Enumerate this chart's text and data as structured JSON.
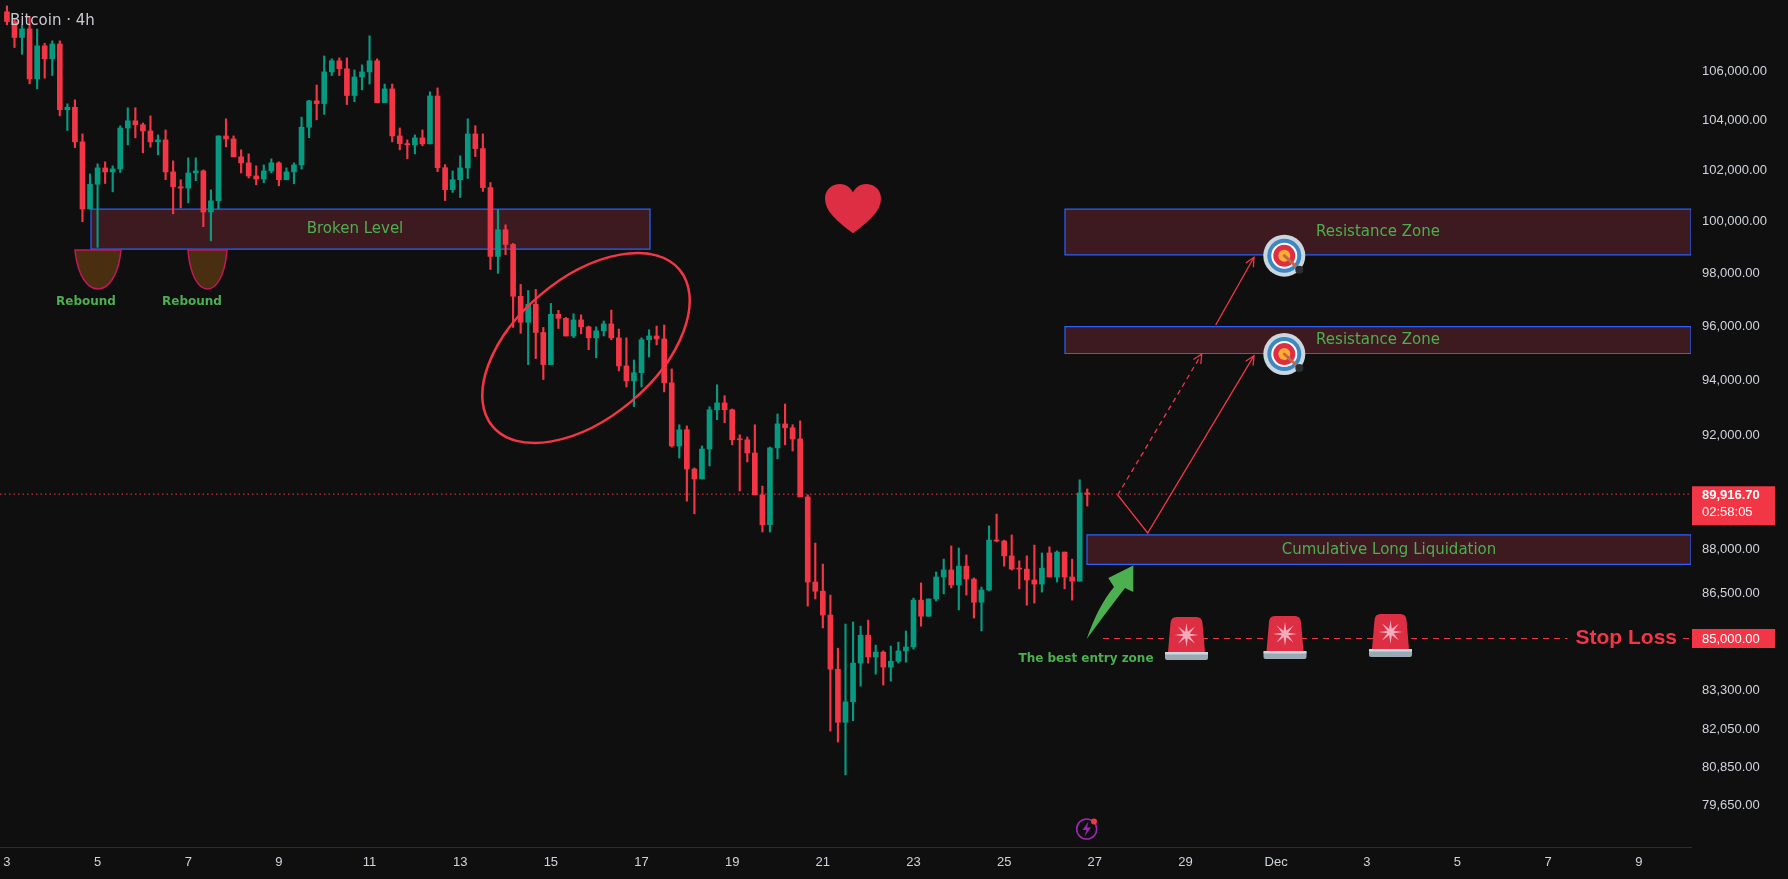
{
  "chart_data": {
    "type": "candlestick",
    "title": "Bitcoin · 4h",
    "x": [
      "--11-03T00:00",
      "--11-03T04:00",
      "--11-03T08:00",
      "--11-03T12:00",
      "--11-03T16:00",
      "--11-03T20:00",
      "--11-04T00:00",
      "--11-04T04:00",
      "--11-04T08:00",
      "--11-04T12:00",
      "--11-04T16:00",
      "--11-04T20:00",
      "--11-05T00:00",
      "--11-05T04:00",
      "--11-05T08:00",
      "--11-05T12:00",
      "--11-05T16:00",
      "--11-05T20:00",
      "--11-06T00:00",
      "--11-06T04:00",
      "--11-06T08:00",
      "--11-06T12:00",
      "--11-06T16:00",
      "--11-06T20:00",
      "--11-07T00:00",
      "--11-07T04:00",
      "--11-07T08:00",
      "--11-07T12:00",
      "--11-07T16:00",
      "--11-07T20:00",
      "--11-08T00:00",
      "--11-08T04:00",
      "--11-08T08:00",
      "--11-08T12:00",
      "--11-08T16:00",
      "--11-08T20:00",
      "--11-09T00:00",
      "--11-09T04:00",
      "--11-09T08:00",
      "--11-09T12:00",
      "--11-09T16:00",
      "--11-09T20:00",
      "--11-10T00:00",
      "--11-10T04:00",
      "--11-10T08:00",
      "--11-10T12:00",
      "--11-10T16:00",
      "--11-10T20:00",
      "--11-11T00:00",
      "--11-11T04:00",
      "--11-11T08:00",
      "--11-11T12:00",
      "--11-11T16:00",
      "--11-11T20:00",
      "--11-12T00:00",
      "--11-12T04:00",
      "--11-12T08:00",
      "--11-12T12:00",
      "--11-12T16:00",
      "--11-12T20:00",
      "--11-13T00:00",
      "--11-13T04:00",
      "--11-13T08:00",
      "--11-13T12:00",
      "--11-13T16:00",
      "--11-13T20:00",
      "--11-14T00:00",
      "--11-14T04:00",
      "--11-14T08:00",
      "--11-14T12:00",
      "--11-14T16:00",
      "--11-14T20:00",
      "--11-15T00:00",
      "--11-15T04:00",
      "--11-15T08:00",
      "--11-15T12:00",
      "--11-15T16:00",
      "--11-15T20:00",
      "--11-16T00:00",
      "--11-16T04:00",
      "--11-16T08:00",
      "--11-16T12:00",
      "--11-16T16:00",
      "--11-16T20:00",
      "--11-17T00:00",
      "--11-17T04:00",
      "--11-17T08:00",
      "--11-17T12:00",
      "--11-17T16:00",
      "--11-17T20:00",
      "--11-18T00:00",
      "--11-18T04:00",
      "--11-18T08:00",
      "--11-18T12:00",
      "--11-18T16:00",
      "--11-18T20:00",
      "--11-19T00:00",
      "--11-19T04:00",
      "--11-19T08:00",
      "--11-19T12:00",
      "--11-19T16:00",
      "--11-19T20:00",
      "--11-20T00:00",
      "--11-20T04:00",
      "--11-20T08:00",
      "--11-20T12:00",
      "--11-20T16:00",
      "--11-20T20:00",
      "--11-21T00:00",
      "--11-21T04:00",
      "--11-21T08:00",
      "--11-21T12:00",
      "--11-21T16:00",
      "--11-21T20:00",
      "--11-22T00:00",
      "--11-22T04:00",
      "--11-22T08:00",
      "--11-22T12:00",
      "--11-22T16:00",
      "--11-22T20:00",
      "--11-23T00:00",
      "--11-23T04:00",
      "--11-23T08:00",
      "--11-23T12:00",
      "--11-23T16:00",
      "--11-23T20:00",
      "--11-24T00:00",
      "--11-24T04:00",
      "--11-24T08:00",
      "--11-24T12:00",
      "--11-24T16:00",
      "--11-24T20:00",
      "--11-25T00:00",
      "--11-25T04:00",
      "--11-25T08:00",
      "--11-25T12:00",
      "--11-25T16:00",
      "--11-25T20:00",
      "--11-26T00:00",
      "--11-26T04:00",
      "--11-26T08:00",
      "--11-26T12:00",
      "--11-26T16:00",
      "--11-26T20:00"
    ],
    "ohlc": [
      [
        108500,
        108750,
        107950,
        108090
      ],
      [
        108090,
        108200,
        107000,
        107420
      ],
      [
        107420,
        107950,
        106720,
        107780
      ],
      [
        107780,
        108300,
        105500,
        105700
      ],
      [
        105700,
        107770,
        105290,
        107070
      ],
      [
        107070,
        107180,
        105730,
        106530
      ],
      [
        106530,
        107280,
        105840,
        107150
      ],
      [
        107150,
        107280,
        104190,
        104440
      ],
      [
        104440,
        104680,
        103600,
        104540
      ],
      [
        104540,
        104840,
        102910,
        103140
      ],
      [
        103140,
        103460,
        99980,
        100480
      ],
      [
        100480,
        101860,
        100480,
        101450
      ],
      [
        101450,
        102260,
        98990,
        102100
      ],
      [
        102100,
        102340,
        101480,
        101940
      ],
      [
        101940,
        102180,
        101150,
        102060
      ],
      [
        102060,
        103790,
        101920,
        103700
      ],
      [
        103700,
        104520,
        103020,
        103990
      ],
      [
        103990,
        104520,
        103300,
        103830
      ],
      [
        103830,
        103900,
        102700,
        103580
      ],
      [
        103580,
        104190,
        102930,
        103140
      ],
      [
        103140,
        103420,
        102620,
        103220
      ],
      [
        103220,
        103620,
        101630,
        101940
      ],
      [
        101940,
        102380,
        100290,
        101350
      ],
      [
        101350,
        101630,
        100520,
        101300
      ],
      [
        101300,
        102500,
        100720,
        101900
      ],
      [
        101900,
        102500,
        101590,
        101980
      ],
      [
        101980,
        102020,
        99790,
        100360
      ],
      [
        100360,
        101230,
        99240,
        100800
      ],
      [
        100800,
        103380,
        100480,
        103380
      ],
      [
        103380,
        104070,
        102940,
        103260
      ],
      [
        103260,
        103380,
        102540,
        102540
      ],
      [
        102540,
        102820,
        101900,
        102300
      ],
      [
        102300,
        102660,
        101700,
        101780
      ],
      [
        101780,
        102180,
        101430,
        101660
      ],
      [
        101660,
        102220,
        101510,
        101980
      ],
      [
        101980,
        102460,
        101900,
        102300
      ],
      [
        102300,
        102340,
        101390,
        101630
      ],
      [
        101630,
        102100,
        101630,
        101940
      ],
      [
        101940,
        102300,
        101470,
        102220
      ],
      [
        102220,
        104140,
        102050,
        103730
      ],
      [
        103730,
        104820,
        103310,
        104800
      ],
      [
        104800,
        105450,
        104030,
        104690
      ],
      [
        104690,
        106650,
        104250,
        105990
      ],
      [
        105990,
        106530,
        105840,
        106450
      ],
      [
        106450,
        106570,
        105840,
        106120
      ],
      [
        106120,
        106570,
        104650,
        105020
      ],
      [
        105020,
        106070,
        104770,
        105780
      ],
      [
        105780,
        106280,
        105250,
        105990
      ],
      [
        105990,
        107490,
        105490,
        106450
      ],
      [
        106450,
        106530,
        104730,
        104730
      ],
      [
        104730,
        105490,
        104730,
        105290
      ],
      [
        105290,
        105490,
        103140,
        103380
      ],
      [
        103380,
        103700,
        102820,
        103070
      ],
      [
        103070,
        103220,
        102460,
        103020
      ],
      [
        103020,
        103420,
        102660,
        103300
      ],
      [
        103300,
        103620,
        102980,
        103060
      ],
      [
        103060,
        105170,
        103060,
        105000
      ],
      [
        105000,
        105330,
        101950,
        102110
      ],
      [
        102110,
        102230,
        100810,
        101240
      ],
      [
        101240,
        101980,
        101130,
        101630
      ],
      [
        101630,
        102580,
        100930,
        102100
      ],
      [
        102100,
        104070,
        101680,
        103460
      ],
      [
        103460,
        103790,
        102550,
        102870
      ],
      [
        102870,
        103460,
        101170,
        101320
      ],
      [
        101320,
        101520,
        98140,
        98640
      ],
      [
        98640,
        100460,
        97990,
        99670
      ],
      [
        99670,
        99860,
        98710,
        99100
      ],
      [
        99100,
        99140,
        95950,
        97120
      ],
      [
        97120,
        97570,
        95730,
        96140
      ],
      [
        96140,
        97340,
        94570,
        96820
      ],
      [
        96820,
        97380,
        94790,
        95760
      ],
      [
        95760,
        95950,
        94020,
        94570
      ],
      [
        94570,
        96850,
        94570,
        96440
      ],
      [
        96440,
        96590,
        95910,
        96290
      ],
      [
        96290,
        96320,
        95630,
        95630
      ],
      [
        95630,
        96460,
        95570,
        96230
      ],
      [
        96230,
        96420,
        95710,
        95970
      ],
      [
        95970,
        96000,
        95120,
        95560
      ],
      [
        95560,
        95970,
        94820,
        95820
      ],
      [
        95820,
        96190,
        95630,
        96080
      ],
      [
        96080,
        96600,
        95490,
        95560
      ],
      [
        95560,
        95890,
        94340,
        94520
      ],
      [
        94520,
        95560,
        93750,
        93970
      ],
      [
        93970,
        94740,
        93040,
        94270
      ],
      [
        94270,
        95560,
        93750,
        95490
      ],
      [
        95490,
        95860,
        94850,
        95630
      ],
      [
        95630,
        96000,
        95300,
        95520
      ],
      [
        95520,
        96040,
        93570,
        93900
      ],
      [
        93900,
        94410,
        91580,
        91620
      ],
      [
        91620,
        92380,
        91190,
        92200
      ],
      [
        92200,
        92340,
        89670,
        90800
      ],
      [
        90800,
        90840,
        89230,
        90450
      ],
      [
        90450,
        91620,
        90450,
        91510
      ],
      [
        91510,
        93030,
        90910,
        92920
      ],
      [
        92920,
        93830,
        92560,
        93170
      ],
      [
        93170,
        93430,
        92450,
        92920
      ],
      [
        92920,
        92950,
        91660,
        91840
      ],
      [
        91870,
        92020,
        90030,
        91840
      ],
      [
        91840,
        91940,
        91050,
        91370
      ],
      [
        91370,
        92380,
        89890,
        89890
      ],
      [
        89890,
        90200,
        88600,
        88850
      ],
      [
        88850,
        91580,
        88600,
        91550
      ],
      [
        91550,
        92770,
        91160,
        92410
      ],
      [
        92410,
        93130,
        91660,
        92270
      ],
      [
        92270,
        92380,
        91440,
        91870
      ],
      [
        91870,
        92520,
        89820,
        89820
      ],
      [
        89820,
        89890,
        86080,
        86890
      ],
      [
        86890,
        88220,
        86320,
        86580
      ],
      [
        86580,
        87500,
        85350,
        85780
      ],
      [
        85780,
        86450,
        81990,
        83990
      ],
      [
        83990,
        84680,
        81640,
        82270
      ],
      [
        82270,
        85480,
        80600,
        82930
      ],
      [
        82930,
        85550,
        82320,
        84190
      ],
      [
        84190,
        85410,
        83440,
        85110
      ],
      [
        85110,
        85610,
        84190,
        84390
      ],
      [
        84390,
        84780,
        83830,
        84550
      ],
      [
        84550,
        84590,
        83470,
        84060
      ],
      [
        84060,
        84750,
        83600,
        84250
      ],
      [
        84250,
        84880,
        84190,
        84590
      ],
      [
        84590,
        85250,
        84220,
        84720
      ],
      [
        84720,
        86350,
        84650,
        86280
      ],
      [
        86280,
        86860,
        85410,
        85740
      ],
      [
        85740,
        86320,
        85740,
        86320
      ],
      [
        86320,
        87230,
        86250,
        87060
      ],
      [
        87060,
        87670,
        86490,
        87300
      ],
      [
        87300,
        88120,
        86690,
        86790
      ],
      [
        86790,
        88050,
        85950,
        87430
      ],
      [
        87430,
        87810,
        86450,
        86990
      ],
      [
        86990,
        87030,
        85680,
        86210
      ],
      [
        86210,
        86720,
        85250,
        86620
      ],
      [
        86620,
        88810,
        86590,
        88320
      ],
      [
        88320,
        89220,
        88260,
        88290
      ],
      [
        88290,
        88320,
        87430,
        87780
      ],
      [
        87780,
        88500,
        87300,
        87330
      ],
      [
        87360,
        87610,
        86660,
        87330
      ],
      [
        87330,
        87780,
        86110,
        86960
      ],
      [
        86960,
        88150,
        86180,
        86820
      ],
      [
        86820,
        87880,
        86550,
        87360
      ],
      [
        87880,
        88090,
        87060,
        87060
      ],
      [
        87060,
        87950,
        86890,
        87910
      ],
      [
        87910,
        87910,
        86660,
        87060
      ],
      [
        87060,
        87670,
        86280,
        86920
      ],
      [
        86920,
        90420,
        86920,
        89960
      ],
      [
        89960,
        90100,
        89500,
        89916.7
      ]
    ],
    "colors": [
      "#f23645",
      "#f23645",
      "#089981",
      "#f23645",
      "#089981",
      "#f23645",
      "#089981",
      "#f23645",
      "#089981",
      "#f23645",
      "#f23645",
      "#089981",
      "#089981",
      "#f23645",
      "#089981",
      "#089981",
      "#089981",
      "#f23645",
      "#f23645",
      "#f23645",
      "#089981",
      "#f23645",
      "#f23645",
      "#f23645",
      "#089981",
      "#089981",
      "#f23645",
      "#089981",
      "#089981",
      "#f23645",
      "#f23645",
      "#f23645",
      "#f23645",
      "#f23645",
      "#089981",
      "#089981",
      "#f23645",
      "#089981",
      "#089981",
      "#089981",
      "#089981",
      "#f23645",
      "#089981",
      "#089981",
      "#f23645",
      "#f23645",
      "#089981",
      "#089981",
      "#089981",
      "#f23645",
      "#089981",
      "#f23645",
      "#f23645",
      "#f23645",
      "#089981",
      "#f23645",
      "#089981",
      "#f23645",
      "#f23645",
      "#089981",
      "#089981",
      "#089981",
      "#f23645",
      "#f23645",
      "#f23645",
      "#089981",
      "#f23645",
      "#f23645",
      "#f23645",
      "#089981",
      "#f23645",
      "#f23645",
      "#089981",
      "#f23645",
      "#f23645",
      "#089981",
      "#f23645",
      "#f23645",
      "#089981",
      "#089981",
      "#f23645",
      "#f23645",
      "#f23645",
      "#089981",
      "#089981",
      "#089981",
      "#f23645",
      "#f23645",
      "#f23645",
      "#089981",
      "#f23645",
      "#f23645",
      "#089981",
      "#089981",
      "#089981",
      "#f23645",
      "#f23645",
      "#f23645",
      "#f23645",
      "#f23645",
      "#f23645",
      "#089981",
      "#089981",
      "#f23645",
      "#f23645",
      "#f23645",
      "#f23645",
      "#f23645",
      "#f23645",
      "#f23645",
      "#f23645",
      "#089981",
      "#089981",
      "#089981",
      "#f23645",
      "#089981",
      "#f23645",
      "#089981",
      "#089981",
      "#089981",
      "#089981",
      "#f23645",
      "#089981",
      "#089981",
      "#089981",
      "#f23645",
      "#089981",
      "#f23645",
      "#f23645",
      "#089981",
      "#089981",
      "#f23645",
      "#f23645",
      "#f23645",
      "#f23645",
      "#f23645",
      "#f23645",
      "#089981",
      "#f23645",
      "#089981",
      "#f23645",
      "#f23645",
      "#089981",
      "#f23645"
    ],
    "xlim": [
      "--11-02T20:20",
      "--12-10T03:40"
    ],
    "xticks": [
      {
        "value": "--11-03",
        "label": "3"
      },
      {
        "value": "--11-05",
        "label": "5"
      },
      {
        "value": "--11-07",
        "label": "7"
      },
      {
        "value": "--11-09",
        "label": "9"
      },
      {
        "value": "--11-11",
        "label": "11"
      },
      {
        "value": "--11-13",
        "label": "13"
      },
      {
        "value": "--11-15",
        "label": "15"
      },
      {
        "value": "--11-17",
        "label": "17"
      },
      {
        "value": "--11-19",
        "label": "19"
      },
      {
        "value": "--11-21",
        "label": "21"
      },
      {
        "value": "--11-23",
        "label": "23"
      },
      {
        "value": "--11-25",
        "label": "25"
      },
      {
        "value": "--11-27",
        "label": "27"
      },
      {
        "value": "--11-29",
        "label": "29"
      },
      {
        "value": "--12-01",
        "label": "Dec"
      },
      {
        "value": "--12-03",
        "label": "3"
      },
      {
        "value": "--12-05",
        "label": "5"
      },
      {
        "value": "--12-07",
        "label": "7"
      },
      {
        "value": "--12-09",
        "label": "9"
      }
    ],
    "ylim": [
      78370,
      109000
    ],
    "yticks": [
      {
        "value": 106000,
        "label": "106,000.00"
      },
      {
        "value": 104000,
        "label": "104,000.00"
      },
      {
        "value": 102000,
        "label": "102,000.00"
      },
      {
        "value": 100000,
        "label": "100,000.00"
      },
      {
        "value": 98000,
        "label": "98,000.00"
      },
      {
        "value": 96000,
        "label": "96,000.00"
      },
      {
        "value": 94000,
        "label": "94,000.00"
      },
      {
        "value": 92000,
        "label": "92,000.00"
      },
      {
        "value": 88000,
        "label": "88,000.00"
      },
      {
        "value": 86500,
        "label": "86,500.00"
      },
      {
        "value": 85000,
        "label": "85,000.00"
      },
      {
        "value": 83300,
        "label": "83,300.00"
      },
      {
        "value": 82050,
        "label": "82,050.00"
      },
      {
        "value": 80850,
        "label": "80,850.00"
      },
      {
        "value": 79650,
        "label": "79,650.00"
      }
    ],
    "log": true,
    "bands": [
      {
        "axis": "y",
        "from": 98920,
        "to": 100470,
        "label": "Broken Level",
        "color": "#3d1a1f"
      },
      {
        "axis": "y",
        "from": 98700,
        "to": 100470,
        "label": "Resistance Zone",
        "color": "#3d1a1f"
      },
      {
        "axis": "y",
        "from": 94980,
        "to": 95980,
        "label": "Resistance Zone",
        "color": "#3d1a1f"
      },
      {
        "axis": "y",
        "from": 87490,
        "to": 88500,
        "label": "Cumulative Long Liquidation",
        "color": "#3d1a1f"
      }
    ],
    "ref_lines": [
      {
        "axis": "y",
        "value": 89916.7,
        "label": "89,916.70",
        "color": "#f23645",
        "line_style": "dotted"
      },
      {
        "axis": "y",
        "value": 85000,
        "label": "Stop Loss",
        "color": "#f23645",
        "line_style": "dashed"
      }
    ],
    "annotations": [
      "Rebound",
      "Rebound",
      "The best entry zone",
      "02:58:05"
    ]
  }
}
